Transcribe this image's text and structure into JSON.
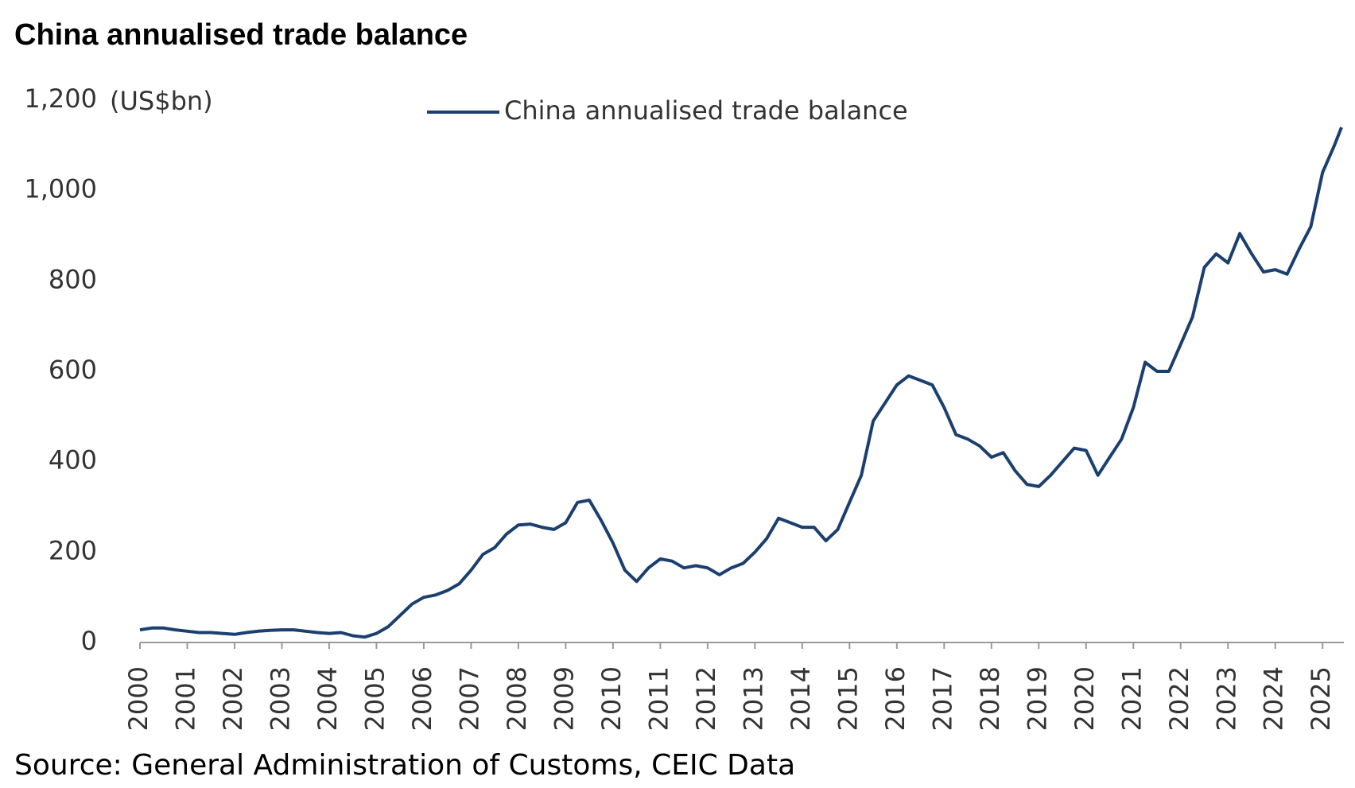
{
  "chart_data": {
    "type": "line",
    "title": "China annualised trade balance",
    "y_unit_label": "(US$bn)",
    "source": "Source: General Administration of Customs, CEIC Data",
    "x": [
      2000,
      2000.25,
      2000.5,
      2000.75,
      2001,
      2001.25,
      2001.5,
      2001.75,
      2002,
      2002.25,
      2002.5,
      2002.75,
      2003,
      2003.25,
      2003.5,
      2003.75,
      2004,
      2004.25,
      2004.5,
      2004.75,
      2005,
      2005.25,
      2005.5,
      2005.75,
      2006,
      2006.25,
      2006.5,
      2006.75,
      2007,
      2007.25,
      2007.5,
      2007.75,
      2008,
      2008.25,
      2008.5,
      2008.75,
      2009,
      2009.25,
      2009.5,
      2009.75,
      2010,
      2010.25,
      2010.5,
      2010.75,
      2011,
      2011.25,
      2011.5,
      2011.75,
      2012,
      2012.25,
      2012.5,
      2012.75,
      2013,
      2013.25,
      2013.5,
      2013.75,
      2014,
      2014.25,
      2014.5,
      2014.75,
      2015,
      2015.25,
      2015.5,
      2015.75,
      2016,
      2016.25,
      2016.5,
      2016.75,
      2017,
      2017.25,
      2017.5,
      2017.75,
      2018,
      2018.25,
      2018.5,
      2018.75,
      2019,
      2019.25,
      2019.5,
      2019.75,
      2020,
      2020.25,
      2020.5,
      2020.75,
      2021,
      2021.25,
      2021.5,
      2021.75,
      2022,
      2022.25,
      2022.5,
      2022.75,
      2023,
      2023.25,
      2023.5,
      2023.75,
      2024,
      2024.25,
      2024.5,
      2024.75,
      2025,
      2025.25,
      2025.4
    ],
    "series": [
      {
        "name": "China annualised trade balance",
        "color": "#1b3f6e",
        "values": [
          28,
          32,
          32,
          28,
          25,
          22,
          22,
          20,
          18,
          22,
          25,
          27,
          28,
          28,
          25,
          22,
          20,
          22,
          15,
          12,
          20,
          35,
          60,
          85,
          100,
          105,
          115,
          130,
          160,
          195,
          210,
          240,
          260,
          262,
          255,
          250,
          265,
          310,
          315,
          270,
          220,
          160,
          135,
          165,
          185,
          180,
          165,
          170,
          165,
          150,
          165,
          175,
          200,
          230,
          275,
          265,
          255,
          255,
          225,
          250,
          310,
          370,
          490,
          530,
          570,
          590,
          580,
          570,
          520,
          460,
          450,
          435,
          410,
          420,
          380,
          350,
          345,
          370,
          400,
          430,
          425,
          370,
          410,
          450,
          520,
          620,
          600,
          600,
          660,
          720,
          830,
          860,
          840,
          905,
          860,
          820,
          825,
          815,
          870,
          920,
          1040,
          1100,
          1140
        ]
      }
    ],
    "xlim": [
      2000,
      2025.45
    ],
    "xticks": [
      2000,
      2001,
      2002,
      2003,
      2004,
      2005,
      2006,
      2007,
      2008,
      2009,
      2010,
      2011,
      2012,
      2013,
      2014,
      2015,
      2016,
      2017,
      2018,
      2019,
      2020,
      2021,
      2022,
      2023,
      2024,
      2025
    ],
    "ylim": [
      0,
      1200
    ],
    "yticks": [
      0,
      200,
      400,
      600,
      800,
      {
        "value": 1000,
        "label": "1,000"
      },
      {
        "value": 1200,
        "label": "1,200"
      }
    ],
    "legend": "top"
  }
}
